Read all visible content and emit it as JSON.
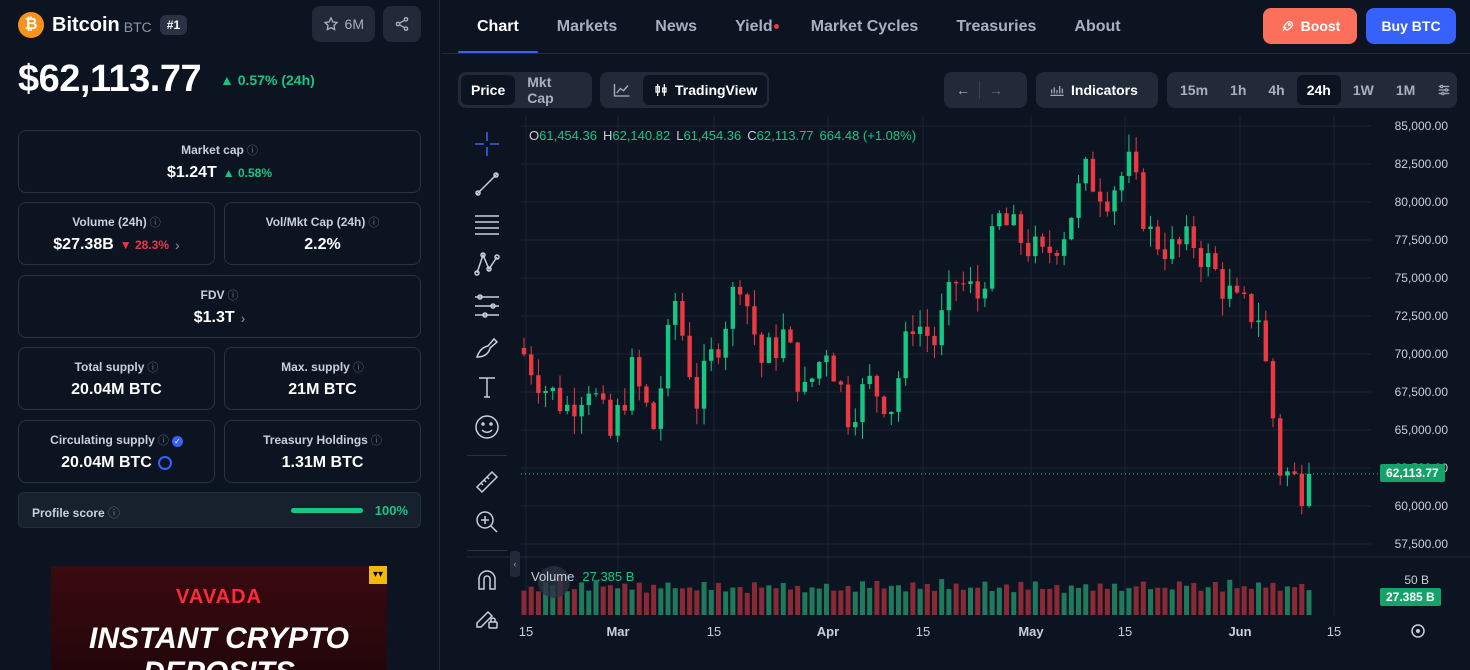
{
  "coin": {
    "logo_glyph": "₿",
    "name": "Bitcoin",
    "symbol": "BTC",
    "rank": "#1",
    "watchlist_count": "6M",
    "price": "$62,113.77",
    "change": "0.57% (24h)"
  },
  "stats": {
    "market_cap": {
      "label": "Market cap",
      "value": "$1.24T",
      "change": "0.58%"
    },
    "volume": {
      "label": "Volume (24h)",
      "value": "$27.38B",
      "change": "28.3%"
    },
    "vol_mkt_cap": {
      "label": "Vol/Mkt Cap (24h)",
      "value": "2.2%"
    },
    "fdv": {
      "label": "FDV",
      "value": "$1.3T"
    },
    "total_supply": {
      "label": "Total supply",
      "value": "20.04M BTC"
    },
    "max_supply": {
      "label": "Max. supply",
      "value": "21M BTC"
    },
    "circulating_supply": {
      "label": "Circulating supply",
      "value": "20.04M BTC"
    },
    "treasury_holdings": {
      "label": "Treasury Holdings",
      "value": "1.31M BTC"
    }
  },
  "profile": {
    "label": "Profile score",
    "value": "100%",
    "fill": 1.0
  },
  "ad": {
    "brand": "VAVADA",
    "line1": "INSTANT CRYPTO",
    "line2": "DEPOSITS"
  },
  "nav": {
    "tabs": [
      "Chart",
      "Markets",
      "News",
      "Yield",
      "Market Cycles",
      "Treasuries",
      "About"
    ],
    "active": "Chart",
    "boost": "Boost",
    "buy": "Buy BTC"
  },
  "toolbar": {
    "price": "Price",
    "mkt_cap": "Mkt Cap",
    "tradingview": "TradingView",
    "indicators": "Indicators",
    "intervals": [
      "15m",
      "1h",
      "4h",
      "24h",
      "1W",
      "1M"
    ],
    "active_interval": "24h"
  },
  "ohlc": {
    "o_label": "O",
    "o": "61,454.36",
    "h_label": "H",
    "h": "62,140.82",
    "l_label": "L",
    "l": "61,454.36",
    "c_label": "C",
    "c": "62,113.77",
    "change": "664.48 (+1.08%)"
  },
  "volume_bar": {
    "label": "Volume",
    "value": "27.385 B"
  },
  "colors": {
    "up": "#16c784",
    "down": "#ea3943",
    "accent": "#3861fb",
    "boost": "#fb6f5b"
  },
  "chart_data": {
    "type": "candlestick",
    "y_ticks": [
      "85,000.00",
      "82,500.00",
      "80,000.00",
      "77,500.00",
      "75,000.00",
      "72,500.00",
      "70,000.00",
      "67,500.00",
      "65,000.00",
      "62,500.00",
      "60,000.00",
      "57,500.00"
    ],
    "ylim": [
      57500,
      85000
    ],
    "x_ticks": [
      "15",
      "Mar",
      "15",
      "Apr",
      "15",
      "May",
      "15",
      "Jun",
      "15"
    ],
    "last_price_tag": "62,113.77",
    "volume_axis_tick": "50 B",
    "volume_tag": "27.385 B",
    "anchors": [
      [
        0,
        70000
      ],
      [
        3,
        67800
      ],
      [
        6,
        66500
      ],
      [
        9,
        68200
      ],
      [
        12,
        64500
      ],
      [
        15,
        68800
      ],
      [
        18,
        65200
      ],
      [
        21,
        73500
      ],
      [
        24,
        67000
      ],
      [
        27,
        71000
      ],
      [
        30,
        75200
      ],
      [
        33,
        69500
      ],
      [
        36,
        71200
      ],
      [
        39,
        67300
      ],
      [
        42,
        70600
      ],
      [
        45,
        66200
      ],
      [
        48,
        68000
      ],
      [
        51,
        66700
      ],
      [
        54,
        72300
      ],
      [
        57,
        70800
      ],
      [
        60,
        74800
      ],
      [
        63,
        73800
      ],
      [
        66,
        78800
      ],
      [
        69,
        77600
      ],
      [
        72,
        76200
      ],
      [
        75,
        78200
      ],
      [
        78,
        81800
      ],
      [
        81,
        80600
      ],
      [
        84,
        82300
      ],
      [
        87,
        77800
      ],
      [
        90,
        76800
      ],
      [
        93,
        77400
      ],
      [
        96,
        75300
      ],
      [
        99,
        73100
      ],
      [
        102,
        72600
      ],
      [
        105,
        62500
      ],
      [
        108,
        61300
      ],
      [
        110,
        62100
      ]
    ],
    "volume_pattern": [
      0.55,
      0.7,
      0.45,
      0.8,
      0.6,
      0.9,
      0.5,
      0.65,
      0.75,
      0.4,
      0.85,
      0.6,
      0.7,
      0.5,
      0.95,
      0.55,
      0.8,
      0.45,
      0.7,
      0.6,
      0.9,
      0.5
    ]
  }
}
